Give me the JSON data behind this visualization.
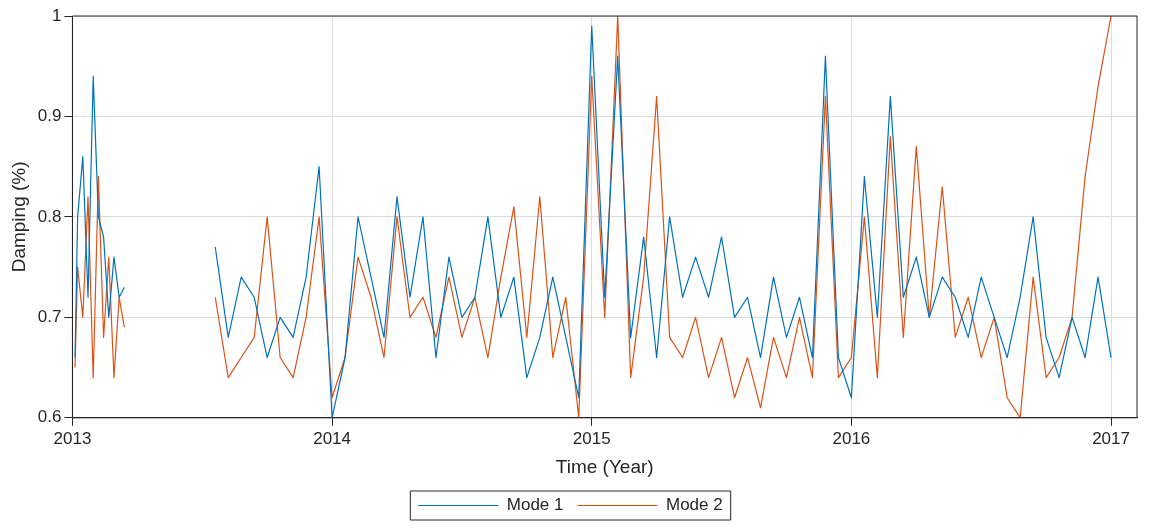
{
  "chart_data": {
    "type": "line",
    "xlabel": "Time (Year)",
    "ylabel": "Damping (%)",
    "x": [
      2013.01,
      2013.02,
      2013.04,
      2013.06,
      2013.08,
      2013.1,
      2013.12,
      2013.14,
      2013.16,
      2013.18,
      2013.2,
      2013.35,
      2013.55,
      2013.6,
      2013.65,
      2013.7,
      2013.75,
      2013.8,
      2013.85,
      2013.9,
      2013.95,
      2014.0,
      2014.05,
      2014.1,
      2014.15,
      2014.2,
      2014.25,
      2014.3,
      2014.35,
      2014.4,
      2014.45,
      2014.5,
      2014.55,
      2014.6,
      2014.65,
      2014.7,
      2014.75,
      2014.8,
      2014.85,
      2014.9,
      2014.95,
      2015.0,
      2015.05,
      2015.1,
      2015.15,
      2015.2,
      2015.25,
      2015.3,
      2015.35,
      2015.4,
      2015.45,
      2015.5,
      2015.55,
      2015.6,
      2015.65,
      2015.7,
      2015.75,
      2015.8,
      2015.85,
      2015.9,
      2015.95,
      2016.0,
      2016.05,
      2016.1,
      2016.15,
      2016.2,
      2016.25,
      2016.3,
      2016.35,
      2016.4,
      2016.45,
      2016.5,
      2016.55,
      2016.6,
      2016.65,
      2016.7,
      2016.75,
      2016.8,
      2016.85,
      2016.9,
      2016.95,
      2017.0
    ],
    "series": [
      {
        "name": "Mode 1",
        "color": "#0072bd",
        "values": [
          0.66,
          0.8,
          0.86,
          0.72,
          0.94,
          0.8,
          0.78,
          0.7,
          0.76,
          0.72,
          0.73,
          null,
          0.77,
          0.68,
          0.74,
          0.72,
          0.66,
          0.7,
          0.68,
          0.74,
          0.85,
          0.6,
          0.66,
          0.8,
          0.74,
          0.68,
          0.82,
          0.72,
          0.8,
          0.66,
          0.76,
          0.7,
          0.72,
          0.8,
          0.7,
          0.74,
          0.64,
          0.68,
          0.74,
          0.68,
          0.62,
          0.99,
          0.72,
          0.96,
          0.68,
          0.78,
          0.66,
          0.8,
          0.72,
          0.76,
          0.72,
          0.78,
          0.7,
          0.72,
          0.66,
          0.74,
          0.68,
          0.72,
          0.66,
          0.96,
          0.66,
          0.62,
          0.84,
          0.7,
          0.92,
          0.72,
          0.76,
          0.7,
          0.74,
          0.72,
          0.68,
          0.74,
          0.7,
          0.66,
          0.72,
          0.8,
          0.68,
          0.64,
          0.7,
          0.66,
          0.74,
          0.66
        ]
      },
      {
        "name": "Mode 2",
        "color": "#d95319",
        "values": [
          0.65,
          0.75,
          0.7,
          0.82,
          0.64,
          0.84,
          0.68,
          0.76,
          0.64,
          0.72,
          0.69,
          null,
          0.72,
          0.64,
          0.66,
          0.68,
          0.8,
          0.66,
          0.64,
          0.7,
          0.8,
          0.62,
          0.66,
          0.76,
          0.72,
          0.66,
          0.8,
          0.7,
          0.72,
          0.68,
          0.74,
          0.68,
          0.72,
          0.66,
          0.74,
          0.81,
          0.68,
          0.82,
          0.66,
          0.72,
          0.6,
          0.94,
          0.7,
          1.0,
          0.64,
          0.74,
          0.92,
          0.68,
          0.66,
          0.7,
          0.64,
          0.68,
          0.62,
          0.66,
          0.61,
          0.68,
          0.64,
          0.7,
          0.64,
          0.92,
          0.64,
          0.66,
          0.8,
          0.64,
          0.88,
          0.68,
          0.87,
          0.7,
          0.83,
          0.68,
          0.72,
          0.66,
          0.7,
          0.62,
          0.6,
          0.74,
          0.64,
          0.66,
          0.7,
          0.84,
          0.93,
          1.0
        ]
      }
    ],
    "xlim": [
      2013,
      2017.1
    ],
    "xticks": [
      2013,
      2014,
      2015,
      2016,
      2017
    ],
    "ylim": [
      0.6,
      1
    ],
    "yticks": [
      0.6,
      0.7,
      0.8,
      0.9,
      1
    ],
    "grid": true,
    "legend": "bottom",
    "marker": "none",
    "line_style": "solid"
  }
}
